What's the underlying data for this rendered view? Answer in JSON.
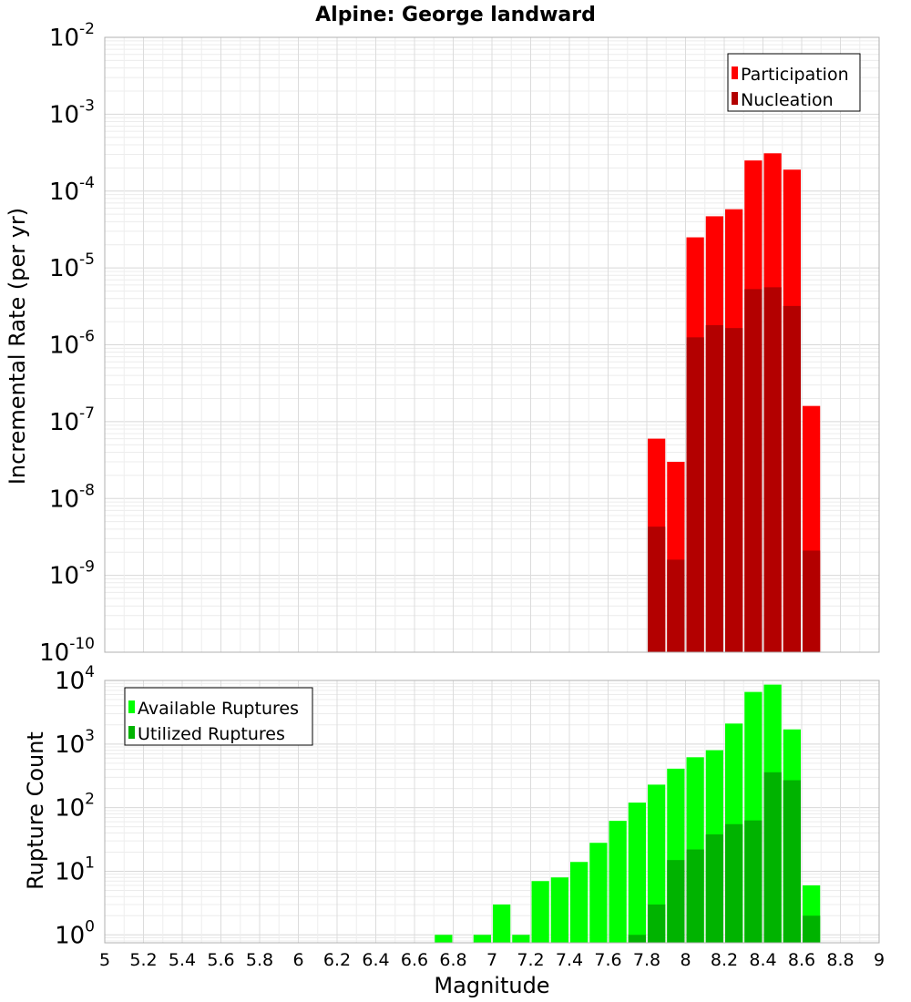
{
  "title": "Alpine: George landward",
  "chart_data": [
    {
      "type": "bar",
      "ylabel": "Incremental Rate (per yr)",
      "yscale": "log",
      "ylim": [
        1e-10,
        0.01
      ],
      "y_ticks": [
        {
          "base": "10",
          "exp": "-10",
          "value": 1e-10
        },
        {
          "base": "10",
          "exp": "-9",
          "value": 1e-09
        },
        {
          "base": "10",
          "exp": "-8",
          "value": 1e-08
        },
        {
          "base": "10",
          "exp": "-7",
          "value": 1e-07
        },
        {
          "base": "10",
          "exp": "-6",
          "value": 1e-06
        },
        {
          "base": "10",
          "exp": "-5",
          "value": 1e-05
        },
        {
          "base": "10",
          "exp": "-4",
          "value": 0.0001
        },
        {
          "base": "10",
          "exp": "-3",
          "value": 0.001
        },
        {
          "base": "10",
          "exp": "-2",
          "value": 0.01
        }
      ],
      "xlim": [
        5,
        9
      ],
      "grid": true,
      "legend_position": "top-right",
      "series": [
        {
          "name": "Participation",
          "color": "#ff0000",
          "x": [
            7.85,
            7.95,
            8.05,
            8.15,
            8.25,
            8.35,
            8.45,
            8.55,
            8.65
          ],
          "values": [
            6e-08,
            3e-08,
            2.5e-05,
            4.7e-05,
            5.8e-05,
            0.00025,
            0.00031,
            0.00019,
            1.6e-07
          ]
        },
        {
          "name": "Nucleation",
          "color": "#b30000",
          "x": [
            7.85,
            7.95,
            8.05,
            8.15,
            8.25,
            8.35,
            8.45,
            8.55,
            8.65
          ],
          "values": [
            4.3e-09,
            1.6e-09,
            1.25e-06,
            1.8e-06,
            1.65e-06,
            5.3e-06,
            5.6e-06,
            3.2e-06,
            2.1e-09
          ]
        }
      ]
    },
    {
      "type": "bar",
      "xlabel": "Magnitude",
      "ylabel": "Rupture Count",
      "yscale": "log",
      "ylim": [
        0.75,
        10000
      ],
      "y_ticks": [
        {
          "base": "10",
          "exp": "0",
          "value": 1
        },
        {
          "base": "10",
          "exp": "1",
          "value": 10
        },
        {
          "base": "10",
          "exp": "2",
          "value": 100
        },
        {
          "base": "10",
          "exp": "3",
          "value": 1000
        },
        {
          "base": "10",
          "exp": "4",
          "value": 10000
        }
      ],
      "xlim": [
        5,
        9
      ],
      "x_ticks": [
        "5",
        "5.2",
        "5.4",
        "5.6",
        "5.8",
        "6",
        "6.2",
        "6.4",
        "6.6",
        "6.8",
        "7",
        "7.2",
        "7.4",
        "7.6",
        "7.8",
        "8",
        "8.2",
        "8.4",
        "8.6",
        "8.8",
        "9"
      ],
      "grid": true,
      "legend_position": "top-left",
      "series": [
        {
          "name": "Available Ruptures",
          "color": "#00ff00",
          "x": [
            6.75,
            6.95,
            7.05,
            7.15,
            7.25,
            7.35,
            7.45,
            7.55,
            7.65,
            7.75,
            7.85,
            7.95,
            8.05,
            8.15,
            8.25,
            8.35,
            8.45,
            8.55,
            8.65
          ],
          "values": [
            1,
            1,
            3,
            1,
            7,
            8,
            14,
            28,
            62,
            120,
            230,
            410,
            620,
            800,
            2100,
            6600,
            8600,
            1700,
            6
          ]
        },
        {
          "name": "Utilized Ruptures",
          "color": "#00b300",
          "x": [
            7.75,
            7.85,
            7.95,
            8.05,
            8.15,
            8.25,
            8.35,
            8.45,
            8.55,
            8.65
          ],
          "values": [
            1,
            3,
            15,
            22,
            38,
            55,
            63,
            360,
            270,
            2
          ]
        }
      ]
    }
  ]
}
